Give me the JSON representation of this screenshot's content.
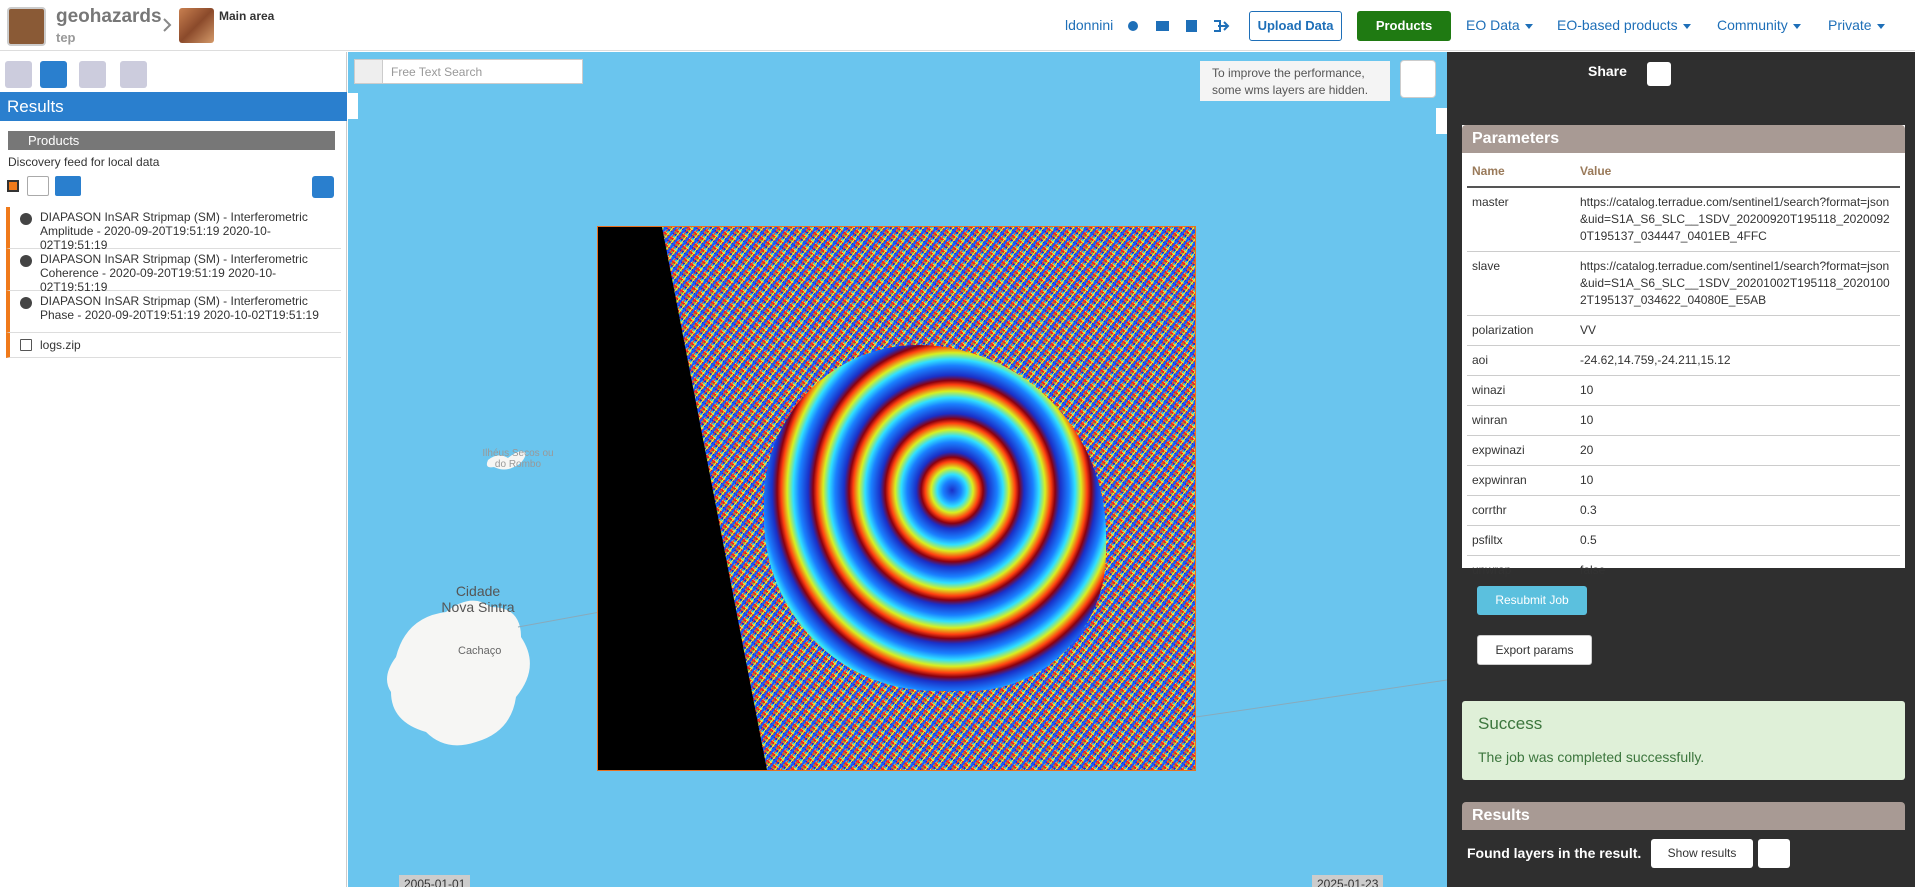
{
  "header": {
    "brand": "geohazards",
    "brand_sub": "tep",
    "area": "Main area",
    "user": "ldonnini",
    "upload": "Upload Data",
    "nav": [
      "Products",
      "EO Data",
      "EO-based products",
      "Community",
      "Private"
    ]
  },
  "left": {
    "title": "Results",
    "section": "Products",
    "subtitle": "Discovery feed for local data",
    "items": [
      "DIAPASON InSAR Stripmap (SM) - Interferometric Amplitude - 2020-09-20T19:51:19 2020-10-02T19:51:19",
      "DIAPASON InSAR Stripmap (SM) - Interferometric Coherence - 2020-09-20T19:51:19 2020-10-02T19:51:19",
      "DIAPASON InSAR Stripmap (SM) - Interferometric Phase - 2020-09-20T19:51:19 2020-10-02T19:51:19",
      "logs.zip"
    ]
  },
  "map": {
    "search": "Free Text Search",
    "notice": "To improve the performance, some wms layers are hidden.",
    "labels": [
      "Ilhéus Secos ou do Rombo",
      "Cidade Nova Sintra",
      "Cachaço"
    ],
    "timeline": [
      "2005-01-01",
      "2025-01-23"
    ]
  },
  "right": {
    "share": "Share",
    "parameters": {
      "title": "Parameters",
      "headers": [
        "Name",
        "Value"
      ],
      "rows": [
        [
          "master",
          "https://catalog.terradue.com/sentinel1/search?format=json&uid=S1A_S6_SLC__1SDV_20200920T195118_20200920T195137_034447_0401EB_4FFC"
        ],
        [
          "slave",
          "https://catalog.terradue.com/sentinel1/search?format=json&uid=S1A_S6_SLC__1SDV_20201002T195118_20201002T195137_034622_04080E_E5AB"
        ],
        [
          "polarization",
          "VV"
        ],
        [
          "aoi",
          "-24.62,14.759,-24.211,15.12"
        ],
        [
          "winazi",
          "10"
        ],
        [
          "winran",
          "10"
        ],
        [
          "expwinazi",
          "20"
        ],
        [
          "expwinran",
          "10"
        ],
        [
          "corrthr",
          "0.3"
        ],
        [
          "psfiltx",
          "0.5"
        ],
        [
          "unwrap",
          "false"
        ]
      ]
    },
    "resubmit": "Resubmit Job",
    "export": "Export params",
    "success_title": "Success",
    "success_text": "The job was completed successfully.",
    "results_title": "Results",
    "found": "Found layers in the result.",
    "show_results": "Show results"
  }
}
